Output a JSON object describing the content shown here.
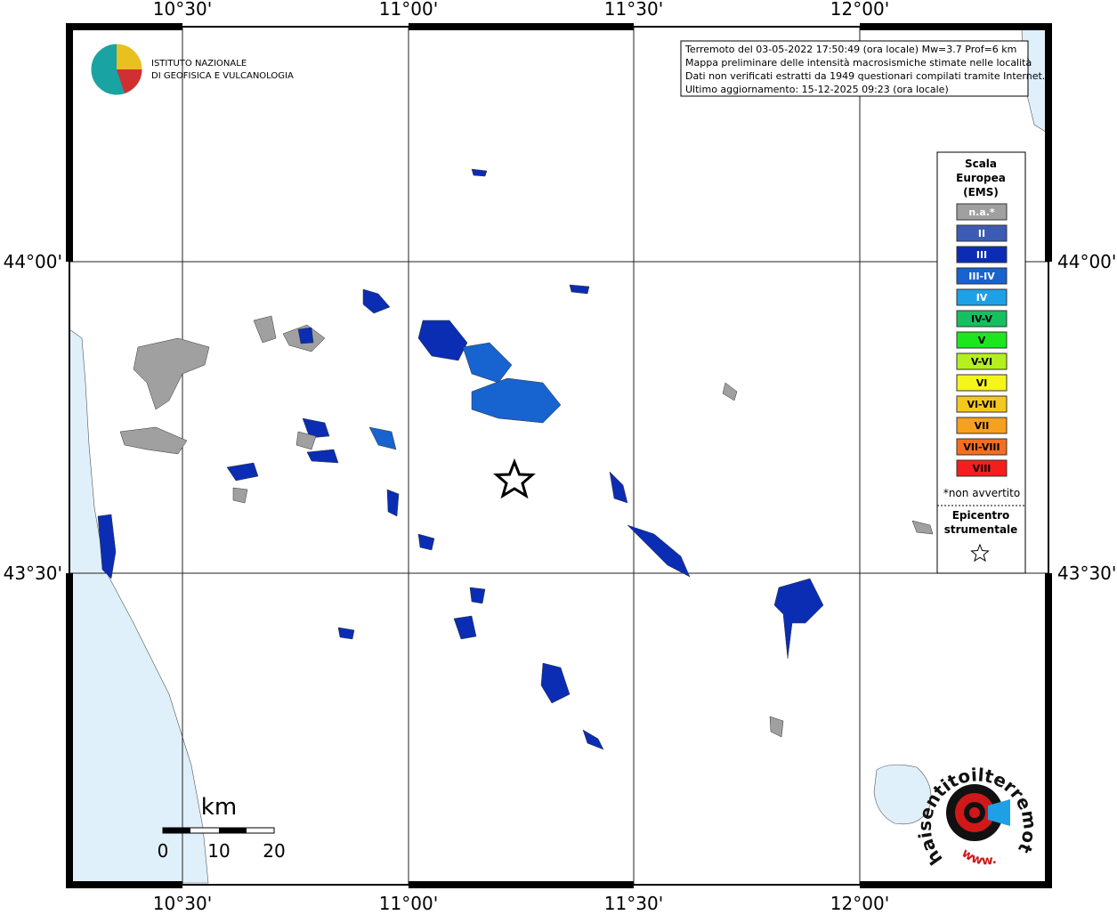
{
  "map": {
    "x_labels": [
      "10°30'",
      "11°00'",
      "11°30'",
      "12°00'"
    ],
    "y_labels": [
      "44°00'",
      "43°30'"
    ]
  },
  "logo": {
    "line1": "ISTITUTO NAZIONALE",
    "line2": "DI GEOFISICA E VULCANOLOGIA"
  },
  "info": {
    "lines": [
      "Terremoto del 03-05-2022 17:50:49 (ora locale) Mw=3.7 Prof=6 km",
      "Mappa preliminare delle intensità macrosismiche stimate nelle località",
      "Dati non verificati estratti da 1949 questionari compilati tramite Internet.",
      "Ultimo aggiornamento: 15-12-2025 09:23 (ora locale)"
    ]
  },
  "legend": {
    "title_lines": [
      "Scala",
      "Europea",
      "(EMS)"
    ],
    "items": [
      {
        "label": "n.a.*",
        "color": "#a0a0a0"
      },
      {
        "label": "II",
        "color": "#3c5cb4"
      },
      {
        "label": "III",
        "color": "#0a2db4"
      },
      {
        "label": "III-IV",
        "color": "#1763cf"
      },
      {
        "label": "IV",
        "color": "#1ea0e6"
      },
      {
        "label": "IV-V",
        "color": "#14c060"
      },
      {
        "label": "V",
        "color": "#1ee61e"
      },
      {
        "label": "V-VI",
        "color": "#b4f01e"
      },
      {
        "label": "VI",
        "color": "#f5f51e"
      },
      {
        "label": "VI-VII",
        "color": "#f5c81e"
      },
      {
        "label": "VII",
        "color": "#f5a01e"
      },
      {
        "label": "VII-VIII",
        "color": "#f56e1e"
      },
      {
        "label": "VIII",
        "color": "#f51e1e"
      }
    ],
    "note": "*non avvertito",
    "epicenter_lines": [
      "Epicentro",
      "strumentale"
    ]
  },
  "scale_bar": {
    "unit": "km",
    "ticks": [
      "0",
      "10",
      "20"
    ]
  },
  "watermark": {
    "text": "haisentitoilterremoto.it",
    "url": "www."
  }
}
